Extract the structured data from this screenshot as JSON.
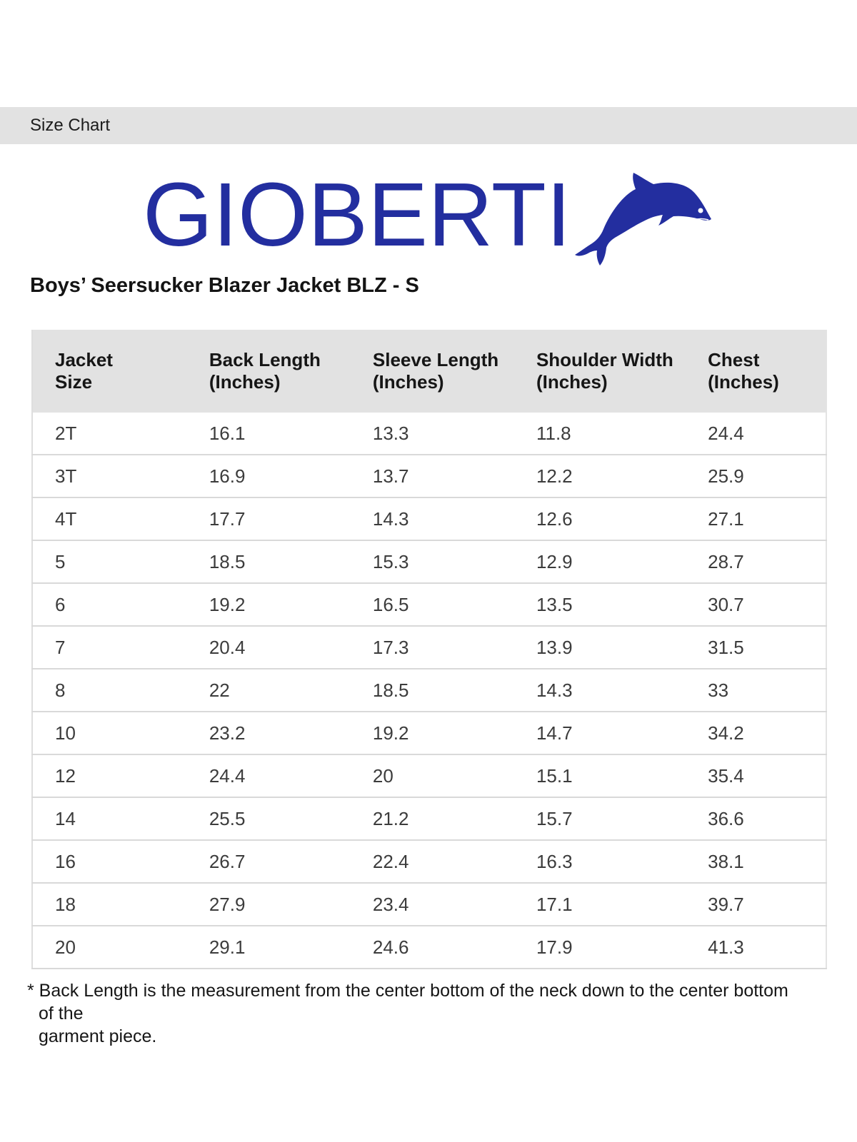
{
  "page": {
    "section_header": "Size Chart"
  },
  "brand": {
    "logo_text": "GIOBERTI",
    "logo_icon": "dolphin-icon",
    "logo_color": "#232e9f"
  },
  "product": {
    "title": "Boys’ Seersucker Blazer Jacket BLZ - S"
  },
  "size_table": {
    "columns": [
      {
        "line1": "Jacket",
        "line2": "Size"
      },
      {
        "line1": "Back Length",
        "line2": "(Inches)"
      },
      {
        "line1": "Sleeve Length",
        "line2": "(Inches)"
      },
      {
        "line1": "Shoulder Width",
        "line2": "(Inches)"
      },
      {
        "line1": "Chest",
        "line2": "(Inches)"
      }
    ],
    "rows": [
      [
        "2T",
        "16.1",
        "13.3",
        "11.8",
        "24.4"
      ],
      [
        "3T",
        "16.9",
        "13.7",
        "12.2",
        "25.9"
      ],
      [
        "4T",
        "17.7",
        "14.3",
        "12.6",
        "27.1"
      ],
      [
        "5",
        "18.5",
        "15.3",
        "12.9",
        "28.7"
      ],
      [
        "6",
        "19.2",
        "16.5",
        "13.5",
        "30.7"
      ],
      [
        "7",
        "20.4",
        "17.3",
        "13.9",
        "31.5"
      ],
      [
        "8",
        "22",
        "18.5",
        "14.3",
        "33"
      ],
      [
        "10",
        "23.2",
        "19.2",
        "14.7",
        "34.2"
      ],
      [
        "12",
        "24.4",
        "20",
        "15.1",
        "35.4"
      ],
      [
        "14",
        "25.5",
        "21.2",
        "15.7",
        "36.6"
      ],
      [
        "16",
        "26.7",
        "22.4",
        "16.3",
        "38.1"
      ],
      [
        "18",
        "27.9",
        "23.4",
        "17.1",
        "39.7"
      ],
      [
        "20",
        "29.1",
        "24.6",
        "17.9",
        "41.3"
      ]
    ]
  },
  "footnote": {
    "line1": "* Back Length is the measurement from the center bottom of the neck down to the center bottom of the",
    "line2": "garment piece."
  },
  "colors": {
    "header_bar_gray": "#e2e2e2",
    "table_header_gray": "#e2e2e2",
    "row_divider": "#d9d9d9",
    "logo_blue": "#232e9f"
  }
}
